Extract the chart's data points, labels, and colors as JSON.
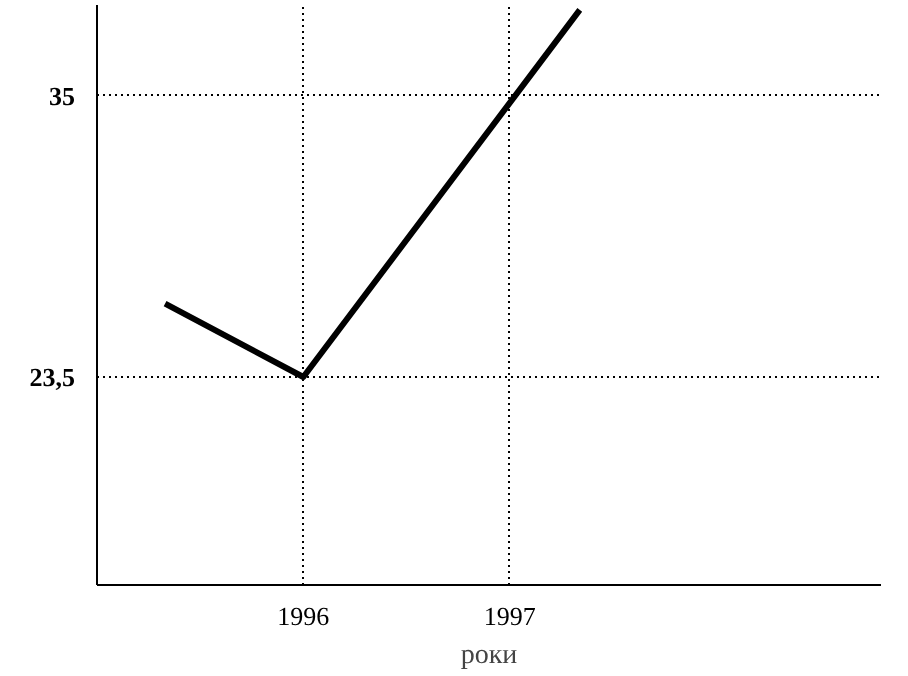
{
  "chart_data": {
    "type": "line",
    "xlabel": "роки",
    "x": [
      1995.33,
      1996,
      1997.34
    ],
    "series": [
      {
        "color": "#000000",
        "values": [
          26.5,
          23.5,
          38.5
        ]
      }
    ],
    "xlim": [
      1995,
      1998.8
    ],
    "ylim": [
      15,
      38.7
    ],
    "xticks": [
      1996,
      1997
    ],
    "yticks": [
      {
        "value": 23.5,
        "label": "23,5"
      },
      35
    ],
    "grid": true,
    "line_style": "solid",
    "marker": "none"
  }
}
